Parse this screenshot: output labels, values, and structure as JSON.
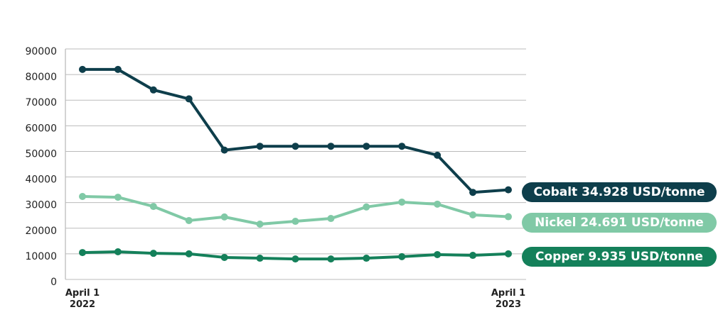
{
  "chart_data": {
    "type": "line",
    "categories": [
      "April 1 2022",
      null,
      null,
      null,
      null,
      null,
      null,
      null,
      null,
      null,
      null,
      null,
      "April 1 2023"
    ],
    "series": [
      {
        "name": "Cobalt 34.928 USD/tonne",
        "color": "#0e3e4b",
        "values": [
          82000,
          82000,
          74000,
          70500,
          50500,
          52000,
          52000,
          52000,
          52000,
          52000,
          48500,
          34000,
          35000
        ]
      },
      {
        "name": "Nickel 24.691 USD/tonne",
        "color": "#80c9a6",
        "values": [
          32400,
          32100,
          28500,
          23000,
          24400,
          21600,
          22700,
          23800,
          28300,
          30200,
          29400,
          25200,
          24500
        ]
      },
      {
        "name": "Copper 9.935 USD/tonne",
        "color": "#14805a",
        "values": [
          10500,
          10800,
          10200,
          10000,
          8600,
          8300,
          8000,
          8000,
          8300,
          8900,
          9700,
          9400,
          10000
        ]
      }
    ],
    "ylim": [
      0,
      90000
    ],
    "yticks": [
      0,
      10000,
      20000,
      30000,
      40000,
      50000,
      60000,
      70000,
      80000,
      90000
    ],
    "grid": true
  }
}
